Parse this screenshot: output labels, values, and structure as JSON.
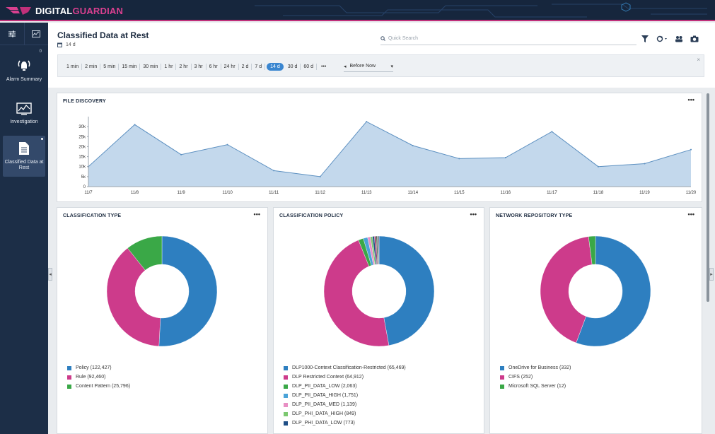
{
  "brand": {
    "name_a": "DIGITAL",
    "name_b": "GUARDIAN"
  },
  "sidebar": {
    "badge_count": "0",
    "items": [
      {
        "label": "Alarm Summary",
        "icon": "alarm-icon"
      },
      {
        "label": "Investigation",
        "icon": "chart-monitor-icon"
      },
      {
        "label": "Classified Data at Rest",
        "icon": "document-icon"
      }
    ]
  },
  "header": {
    "title": "Classified Data at Rest",
    "range": "14 d"
  },
  "search": {
    "placeholder": "Quick Search"
  },
  "timebar": {
    "options": [
      "1 min",
      "2 min",
      "5 min",
      "15 min",
      "30 min",
      "1 hr",
      "2 hr",
      "3 hr",
      "6 hr",
      "24 hr",
      "2 d",
      "7 d",
      "14 d",
      "30 d",
      "60 d"
    ],
    "selected": "14 d",
    "more": "•••",
    "before_now": "Before Now"
  },
  "panels": {
    "file_discovery": {
      "title": "FILE DISCOVERY",
      "menu": "•••"
    },
    "classification_type": {
      "title": "CLASSIFICATION TYPE",
      "menu": "•••"
    },
    "classification_policy": {
      "title": "CLASSIFICATION POLICY",
      "menu": "•••"
    },
    "network_repository_type": {
      "title": "NETWORK REPOSITORY TYPE",
      "menu": "•••"
    }
  },
  "chart_data": [
    {
      "type": "area",
      "title": "FILE DISCOVERY",
      "x": [
        "11/7",
        "11/8",
        "11/9",
        "11/10",
        "11/11",
        "11/12",
        "11/13",
        "11/14",
        "11/15",
        "11/16",
        "11/17",
        "11/18",
        "11/19",
        "11/20"
      ],
      "values": [
        10000,
        31000,
        16000,
        21000,
        8000,
        5000,
        32500,
        20500,
        14000,
        14500,
        27500,
        10000,
        11500,
        18500
      ],
      "ylim": [
        0,
        35000
      ],
      "yticks": [
        "0",
        "5k",
        "10k",
        "15k",
        "20k",
        "25k",
        "30k"
      ],
      "color": "#c3d8ec",
      "line_color": "#5b8fc0",
      "grid": false
    },
    {
      "type": "pie",
      "title": "CLASSIFICATION TYPE",
      "donut": true,
      "slices": [
        {
          "label": "Policy (122,427)",
          "value": 122427,
          "color": "#2e7fc0"
        },
        {
          "label": "Rule (92,460)",
          "value": 92460,
          "color": "#cd3b8b"
        },
        {
          "label": "Content Pattern (25,796)",
          "value": 25796,
          "color": "#3aa847"
        }
      ]
    },
    {
      "type": "pie",
      "title": "CLASSIFICATION POLICY",
      "donut": true,
      "slices": [
        {
          "label": "DLP1000-Context Classification-Restricted (65,469)",
          "value": 65469,
          "color": "#2e7fc0"
        },
        {
          "label": "DLP Restricted Context (64,912)",
          "value": 64912,
          "color": "#cd3b8b"
        },
        {
          "label": "DLP_PII_DATA_LOW (2,063)",
          "value": 2063,
          "color": "#3aa847"
        },
        {
          "label": "DLP_PII_DATA_HIGH (1,751)",
          "value": 1751,
          "color": "#4aa3d8"
        },
        {
          "label": "DLP_PII_DATA_MED (1,139)",
          "value": 1139,
          "color": "#e88fc4"
        },
        {
          "label": "DLP_PHI_DATA_HIGH (849)",
          "value": 849,
          "color": "#7cc870"
        },
        {
          "label": "DLP_PHI_DATA_LOW (773)",
          "value": 773,
          "color": "#1f4f86"
        },
        {
          "label": "",
          "value": 700,
          "color": "#a03a6a"
        },
        {
          "label": "",
          "value": 500,
          "color": "#2f6b3a"
        },
        {
          "label": "",
          "value": 400,
          "color": "#6b5aa0"
        },
        {
          "label": "",
          "value": 300,
          "color": "#444444"
        }
      ]
    },
    {
      "type": "pie",
      "title": "NETWORK REPOSITORY TYPE",
      "donut": true,
      "slices": [
        {
          "label": "OneDrive for Business (332)",
          "value": 332,
          "color": "#2e7fc0"
        },
        {
          "label": "CIFS (252)",
          "value": 252,
          "color": "#cd3b8b"
        },
        {
          "label": "Microsoft SQL Server (12)",
          "value": 12,
          "color": "#3aa847"
        }
      ]
    }
  ]
}
